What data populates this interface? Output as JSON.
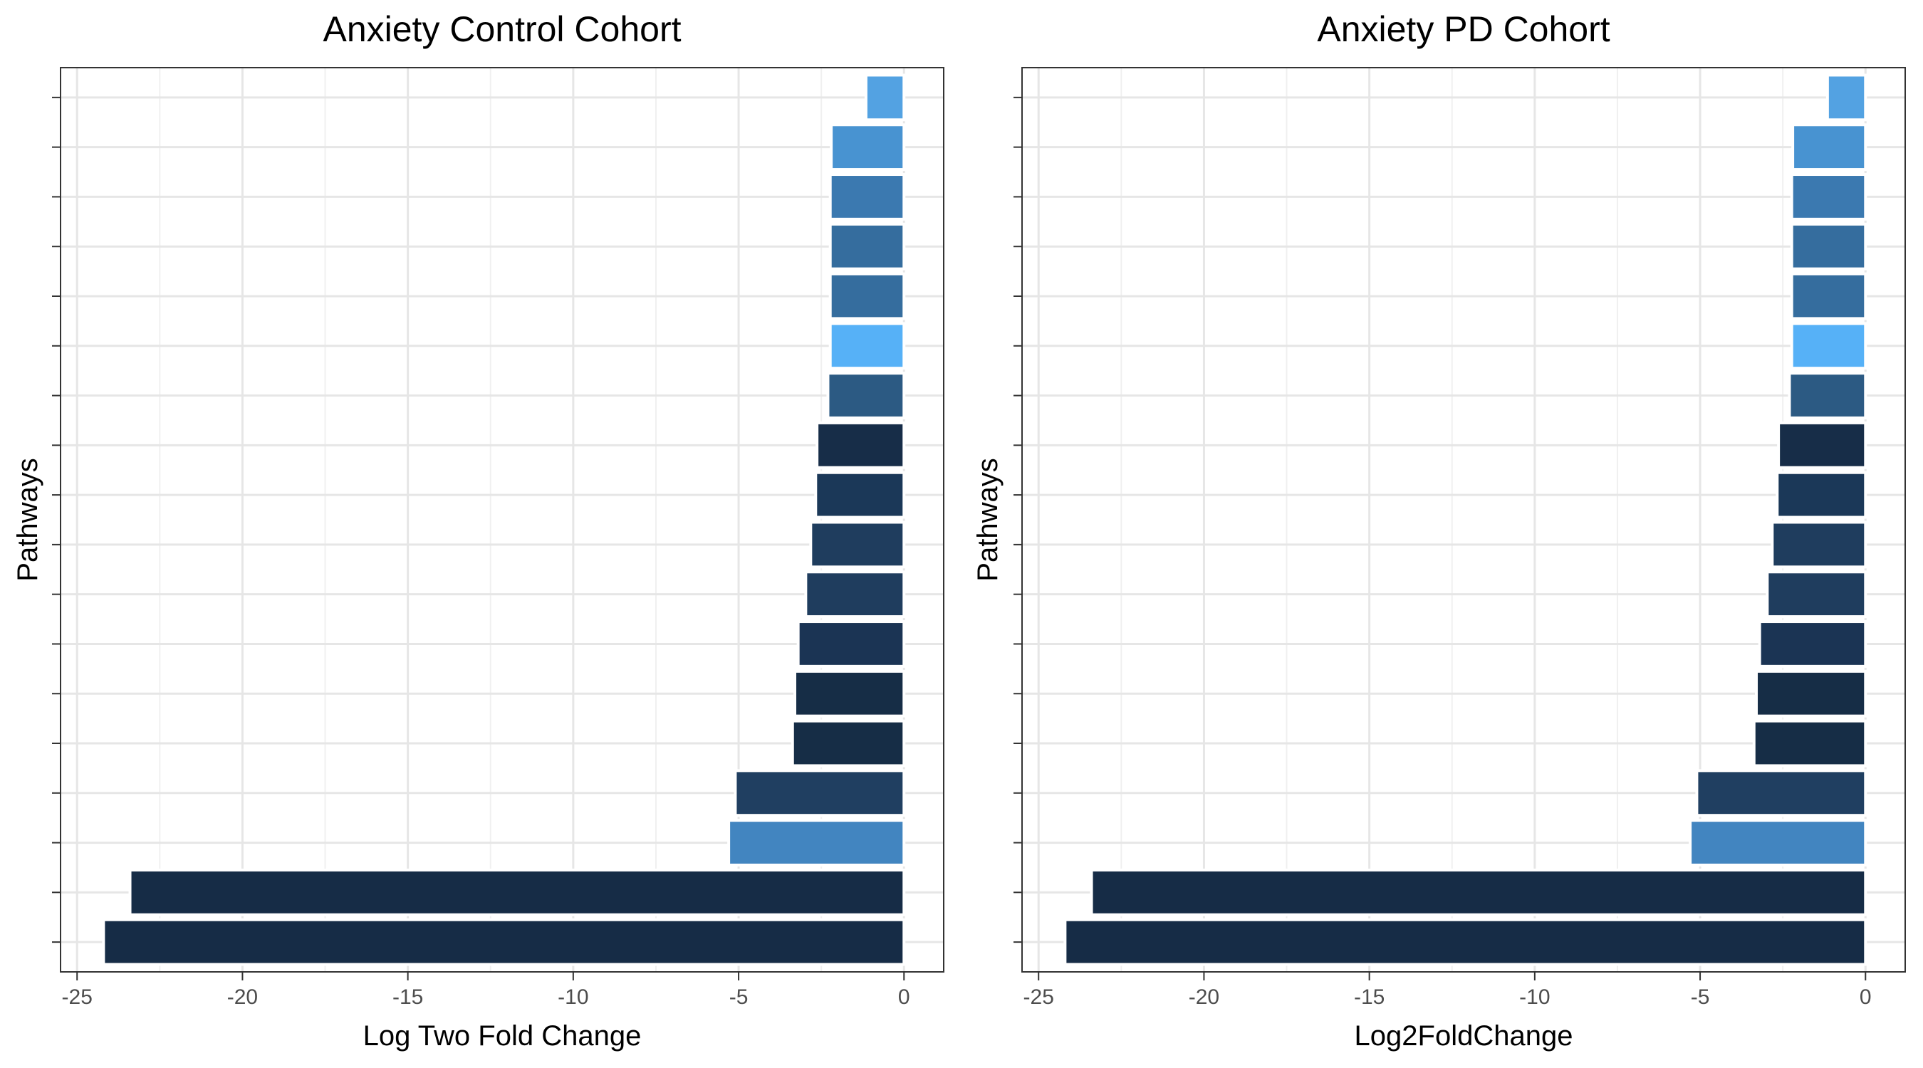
{
  "chart_data": [
    {
      "type": "bar",
      "orientation": "horizontal",
      "title": "Anxiety Control Cohort",
      "xlabel": "Log Two Fold Change",
      "ylabel": "Pathways",
      "xlim": [
        -25.5,
        1.2
      ],
      "xticks": [
        -25,
        -20,
        -15,
        -10,
        -5,
        0
      ],
      "xtick_labels": [
        "-25",
        "-20",
        "-15",
        "-10",
        "-5",
        "0"
      ],
      "grid": true,
      "values": [
        -1.15,
        -2.2,
        -2.23,
        -2.23,
        -2.23,
        -2.23,
        -2.3,
        -2.63,
        -2.67,
        -2.82,
        -2.97,
        -3.2,
        -3.3,
        -3.37,
        -5.1,
        -5.3,
        -23.4,
        -24.2
      ],
      "colors": [
        "#53a2e2",
        "#4893d1",
        "#3b79b0",
        "#356d9e",
        "#356d9e",
        "#56b1f7",
        "#2c5a83",
        "#172d48",
        "#1b3858",
        "#1f3d5e",
        "#1f3d5e",
        "#1b3454",
        "#162d46",
        "#162d46",
        "#203f61",
        "#4285c0",
        "#162c46",
        "#162c46"
      ]
    },
    {
      "type": "bar",
      "orientation": "horizontal",
      "title": "Anxiety PD Cohort",
      "xlabel": "Log2FoldChange",
      "ylabel": "Pathways",
      "xlim": [
        -25.5,
        1.2
      ],
      "xticks": [
        -25,
        -20,
        -15,
        -10,
        -5,
        0
      ],
      "xtick_labels": [
        "-25",
        "-20",
        "-15",
        "-10",
        "-5",
        "0"
      ],
      "grid": true,
      "values": [
        -1.15,
        -2.2,
        -2.23,
        -2.23,
        -2.23,
        -2.23,
        -2.3,
        -2.63,
        -2.67,
        -2.82,
        -2.97,
        -3.2,
        -3.3,
        -3.37,
        -5.1,
        -5.3,
        -23.4,
        -24.2
      ],
      "colors": [
        "#53a2e2",
        "#4893d1",
        "#3b79b0",
        "#356d9e",
        "#356d9e",
        "#56b1f7",
        "#2c5a83",
        "#172d48",
        "#1b3858",
        "#1f3d5e",
        "#1f3d5e",
        "#1b3454",
        "#162d46",
        "#162d46",
        "#203f61",
        "#4285c0",
        "#162c46",
        "#162c46"
      ]
    }
  ]
}
